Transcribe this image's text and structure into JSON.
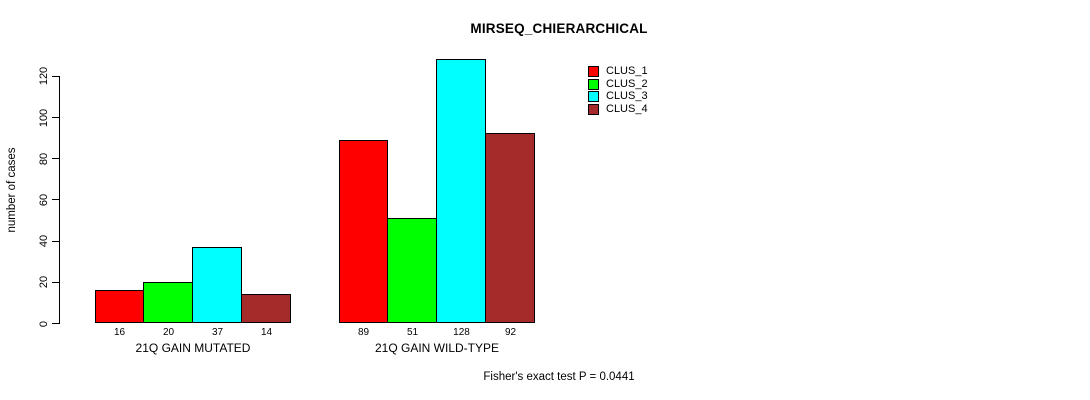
{
  "title": "MIRSEQ_CHIERARCHICAL",
  "ylabel": "number of cases",
  "footer": "Fisher's exact test P = 0.0441",
  "legend": {
    "entries": [
      {
        "label": "CLUS_1",
        "color": "#ff0000"
      },
      {
        "label": "CLUS_2",
        "color": "#00ff00"
      },
      {
        "label": "CLUS_3",
        "color": "#00ffff"
      },
      {
        "label": "CLUS_4",
        "color": "#a52a2a"
      }
    ]
  },
  "chart_data": {
    "type": "bar",
    "title": "MIRSEQ_CHIERARCHICAL",
    "xlabel": "",
    "ylabel": "number of cases",
    "ylim": [
      0,
      128
    ],
    "yticks": [
      0,
      20,
      40,
      60,
      80,
      100,
      120
    ],
    "grid": false,
    "legend_position": "top-right",
    "categories": [
      "21Q GAIN MUTATED",
      "21Q GAIN WILD-TYPE"
    ],
    "series": [
      {
        "name": "CLUS_1",
        "color": "#ff0000",
        "values": [
          16,
          89
        ]
      },
      {
        "name": "CLUS_2",
        "color": "#00ff00",
        "values": [
          20,
          51
        ]
      },
      {
        "name": "CLUS_3",
        "color": "#00ffff",
        "values": [
          37,
          128
        ]
      },
      {
        "name": "CLUS_4",
        "color": "#a52a2a",
        "values": [
          14,
          92
        ]
      }
    ],
    "bar_value_labels": {
      "21Q GAIN MUTATED": [
        16,
        20,
        37,
        14
      ],
      "21Q GAIN WILD-TYPE": [
        89,
        51,
        128,
        92
      ]
    },
    "annotation": "Fisher's exact test P = 0.0441"
  }
}
